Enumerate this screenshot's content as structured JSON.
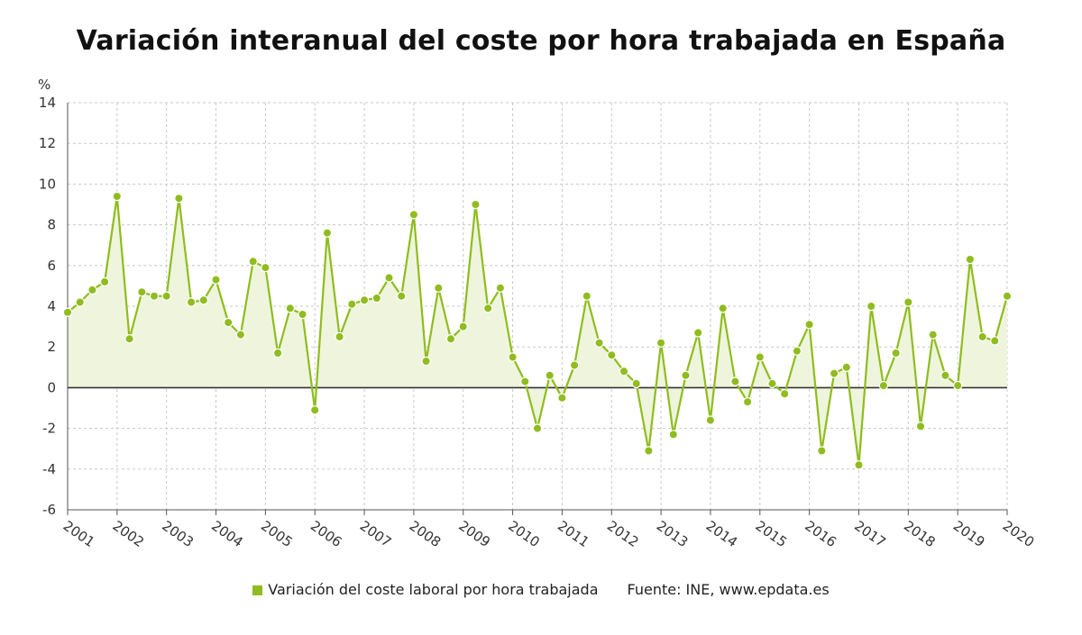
{
  "chart_data": {
    "type": "line",
    "title": "Variación interanual del coste por hora trabajada en España",
    "y_unit_label": "%",
    "ylim": [
      -6,
      14
    ],
    "y_ticks": [
      "14",
      "12",
      "10",
      "8",
      "6",
      "4",
      "2",
      "0",
      "-2",
      "-4",
      "-6"
    ],
    "x_tick_labels": [
      "2001",
      "2002",
      "2003",
      "2004",
      "2005",
      "2006",
      "2007",
      "2008",
      "2009",
      "2010",
      "2011",
      "2012",
      "2013",
      "2014",
      "2015",
      "2016",
      "2017",
      "2018",
      "2019",
      "2020"
    ],
    "grid": true,
    "area_fill": true,
    "legend_position": "bottom",
    "colors": {
      "line": "#8fbc1e",
      "fill": "#eef5dc",
      "zero_line": "#333333",
      "grid": "#c8c8c8"
    },
    "series": [
      {
        "name": "Variación del coste laboral por hora trabajada",
        "points_per_year": 4,
        "values": [
          3.7,
          4.2,
          4.8,
          5.2,
          9.4,
          2.4,
          4.7,
          4.5,
          4.5,
          9.3,
          4.2,
          4.3,
          5.3,
          3.2,
          2.6,
          6.2,
          5.9,
          1.7,
          3.9,
          3.6,
          -1.1,
          7.6,
          2.5,
          4.1,
          4.3,
          4.4,
          5.4,
          4.5,
          8.5,
          1.3,
          4.9,
          2.4,
          3.0,
          9.0,
          3.9,
          4.9,
          1.5,
          0.3,
          -2.0,
          0.6,
          -0.5,
          1.1,
          4.5,
          2.2,
          1.6,
          0.8,
          0.2,
          -3.1,
          2.2,
          -2.3,
          0.6,
          2.7,
          -1.6,
          3.9,
          0.3,
          -0.7,
          1.5,
          0.2,
          -0.3,
          1.8,
          3.1,
          -3.1,
          0.7,
          1.0,
          -3.8,
          4.0,
          0.1,
          1.7,
          4.2,
          -1.9,
          2.6,
          0.6,
          0.1,
          6.3,
          2.5,
          2.3,
          4.5
        ]
      }
    ]
  },
  "legend": {
    "series_label": "Variación del coste laboral por hora trabajada",
    "source": "Fuente: INE, www.epdata.es"
  }
}
